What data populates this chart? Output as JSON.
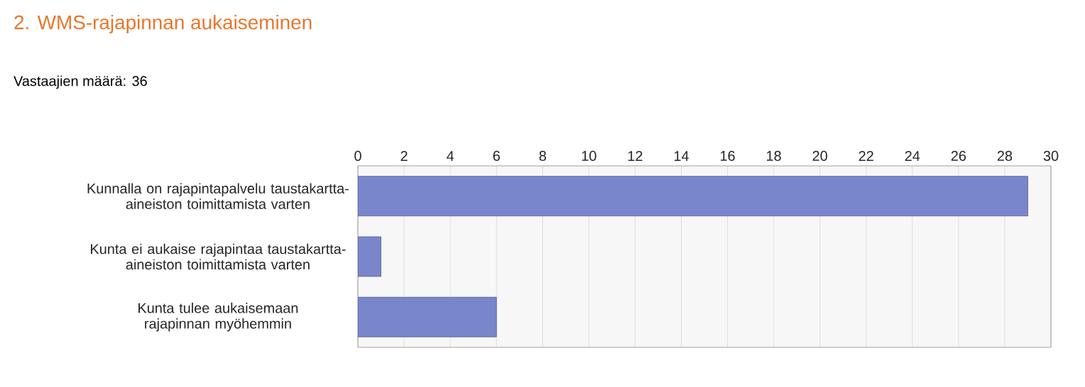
{
  "chart_data": {
    "type": "bar",
    "orientation": "horizontal",
    "title": "2. WMS-rajapinnan aukaiseminen",
    "subtitle": "Vastaajien määrä: 36",
    "categories": [
      "Kunnalla on rajapintapalvelu taustakartta-aineiston toimittamista varten",
      "Kunta ei aukaise rajapintaa taustakartta-aineiston toimittamista varten",
      "Kunta tulee aukaisemaan rajapinnan myöhemmin"
    ],
    "values": [
      29,
      1,
      6
    ],
    "color": "#7a86cc",
    "xlim": [
      0,
      30
    ],
    "xticks": [
      0,
      2,
      4,
      6,
      8,
      10,
      12,
      14,
      16,
      18,
      20,
      22,
      24,
      26,
      28,
      30
    ],
    "grid": "x"
  }
}
